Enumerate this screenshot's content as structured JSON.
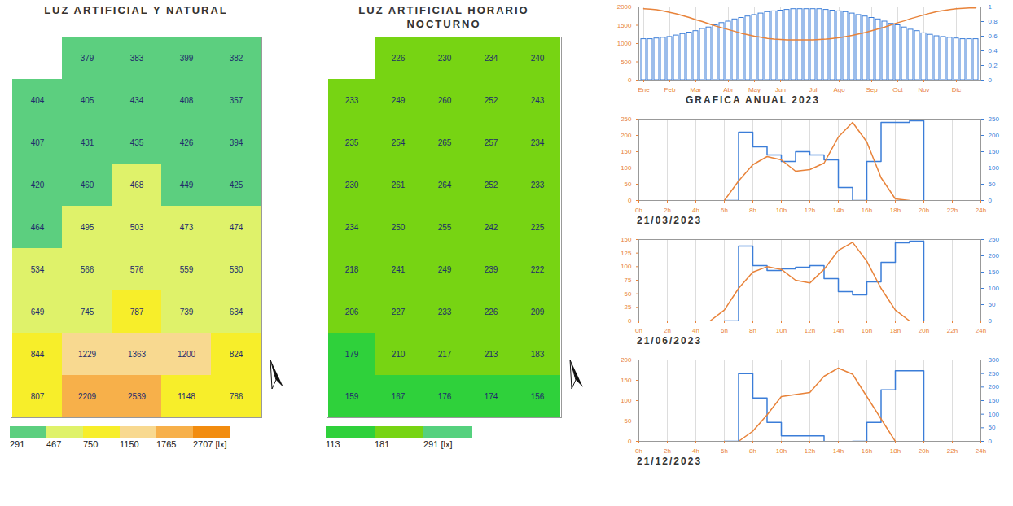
{
  "chart_data": [
    {
      "type": "heatmap",
      "title": "LUZ ARTIFICIAL Y NATURAL",
      "cells": [
        [
          null,
          379,
          383,
          399,
          382
        ],
        [
          404,
          405,
          434,
          408,
          357
        ],
        [
          407,
          431,
          435,
          426,
          394
        ],
        [
          420,
          460,
          468,
          449,
          425
        ],
        [
          464,
          495,
          503,
          473,
          474
        ],
        [
          534,
          566,
          576,
          559,
          530
        ],
        [
          649,
          745,
          787,
          739,
          634
        ],
        [
          844,
          1229,
          1363,
          1200,
          824
        ],
        [
          807,
          2209,
          2539,
          1148,
          786
        ]
      ],
      "color_ticks": [
        291,
        467,
        750,
        1150,
        1765,
        {
          "value": 2707,
          "label": "2707 [lx]"
        }
      ],
      "colors": [
        "#5ccf7f",
        "#dff26a",
        "#f7ee2a",
        "#f8d990",
        "#f7b04a",
        "#f28c0f"
      ],
      "data_labels": true,
      "tick_labels": false
    },
    {
      "type": "heatmap",
      "title": "LUZ ARTIFICIAL HORARIO NOCTURNO",
      "cells": [
        [
          null,
          226,
          230,
          234,
          240
        ],
        [
          233,
          249,
          260,
          252,
          243
        ],
        [
          235,
          254,
          265,
          257,
          234
        ],
        [
          230,
          261,
          264,
          252,
          233
        ],
        [
          234,
          250,
          255,
          242,
          225
        ],
        [
          218,
          241,
          249,
          239,
          222
        ],
        [
          206,
          227,
          233,
          226,
          209
        ],
        [
          179,
          210,
          217,
          213,
          183
        ],
        [
          159,
          167,
          176,
          174,
          156
        ]
      ],
      "color_ticks": [
        113,
        181,
        {
          "value": 291,
          "label": "291 [lx]"
        }
      ],
      "colors": [
        "#2fd13b",
        "#77d413",
        "#55d17e"
      ],
      "data_labels": true,
      "tick_labels": false
    },
    {
      "type": "bar",
      "title": "GRAFICA ANUAL 2023",
      "categories": [
        "Ene",
        null,
        null,
        null,
        "Feb",
        null,
        null,
        null,
        "Mar",
        null,
        null,
        null,
        null,
        "Abr",
        null,
        null,
        null,
        "May",
        null,
        null,
        null,
        "Jun",
        null,
        null,
        null,
        null,
        "Jul",
        null,
        null,
        null,
        "Ago",
        null,
        null,
        null,
        null,
        "Sep",
        null,
        null,
        null,
        "Oct",
        null,
        null,
        null,
        "Nov",
        null,
        null,
        null,
        null,
        "Dic",
        null,
        null,
        null
      ],
      "ylim": [
        0,
        2000
      ],
      "yticks": [
        0,
        500,
        1000,
        1500,
        2000
      ],
      "y2lim": [
        0,
        1
      ],
      "y2ticks": [
        0,
        0.2,
        0.4,
        0.6,
        0.8,
        1
      ],
      "grid": true,
      "series": [
        {
          "type": "bar",
          "axis": "y2",
          "color": "#3b7dd8",
          "values": [
            0.56,
            0.56,
            0.57,
            0.58,
            0.59,
            0.61,
            0.63,
            0.65,
            0.67,
            0.7,
            0.72,
            0.75,
            0.78,
            0.8,
            0.83,
            0.85,
            0.87,
            0.89,
            0.91,
            0.93,
            0.94,
            0.95,
            0.96,
            0.97,
            0.97,
            0.97,
            0.97,
            0.97,
            0.96,
            0.95,
            0.94,
            0.93,
            0.91,
            0.89,
            0.87,
            0.85,
            0.83,
            0.8,
            0.77,
            0.75,
            0.72,
            0.69,
            0.67,
            0.64,
            0.62,
            0.6,
            0.59,
            0.58,
            0.57,
            0.56,
            0.56,
            0.56
          ]
        },
        {
          "type": "line",
          "color": "#e8833a",
          "values": [
            1950,
            1940,
            1920,
            1890,
            1850,
            1810,
            1760,
            1710,
            1650,
            1600,
            1540,
            1480,
            1430,
            1380,
            1330,
            1280,
            1240,
            1200,
            1170,
            1140,
            1120,
            1110,
            1100,
            1100,
            1100,
            1100,
            1100,
            1110,
            1120,
            1140,
            1160,
            1190,
            1220,
            1260,
            1300,
            1350,
            1400,
            1450,
            1510,
            1570,
            1620,
            1680,
            1730,
            1780,
            1830,
            1870,
            1900,
            1930,
            1950,
            1960,
            1970,
            1970
          ]
        }
      ]
    },
    {
      "type": "line",
      "title": "21/03/2023",
      "x": [
        0,
        1,
        2,
        3,
        4,
        5,
        6,
        7,
        8,
        9,
        10,
        11,
        12,
        13,
        14,
        15,
        16,
        17,
        18,
        19,
        20,
        21,
        22,
        23,
        24
      ],
      "xlim": [
        0,
        24
      ],
      "xticks": [
        {
          "value": 0,
          "label": "0h"
        },
        {
          "value": 2,
          "label": "2h"
        },
        {
          "value": 4,
          "label": "4h"
        },
        {
          "value": 6,
          "label": "6h"
        },
        {
          "value": 8,
          "label": "8h"
        },
        {
          "value": 10,
          "label": "10h"
        },
        {
          "value": 12,
          "label": "12h"
        },
        {
          "value": 14,
          "label": "14h"
        },
        {
          "value": 16,
          "label": "16h"
        },
        {
          "value": 18,
          "label": "18h"
        },
        {
          "value": 20,
          "label": "20h"
        },
        {
          "value": 22,
          "label": "22h"
        },
        {
          "value": 24,
          "label": "24h"
        }
      ],
      "ylim": [
        0,
        250
      ],
      "yticks": [
        0,
        50,
        100,
        150,
        200,
        250
      ],
      "y2lim": [
        0,
        250
      ],
      "y2ticks": [
        0,
        50,
        100,
        150,
        200,
        250
      ],
      "grid": true,
      "series": [
        {
          "type": "line",
          "color": "#e8833a",
          "values": [
            null,
            null,
            null,
            null,
            null,
            null,
            0,
            60,
            110,
            135,
            125,
            90,
            95,
            115,
            195,
            240,
            180,
            70,
            5,
            0,
            null,
            null,
            null,
            null,
            null
          ]
        },
        {
          "type": "line",
          "axis": "y2",
          "line_style": "step",
          "color": "#3b7dd8",
          "values": [
            null,
            null,
            null,
            null,
            null,
            null,
            0,
            210,
            165,
            140,
            120,
            150,
            140,
            125,
            40,
            0,
            120,
            240,
            240,
            245,
            0,
            null,
            null,
            null,
            null
          ]
        }
      ]
    },
    {
      "type": "line",
      "title": "21/06/2023",
      "x": [
        0,
        1,
        2,
        3,
        4,
        5,
        6,
        7,
        8,
        9,
        10,
        11,
        12,
        13,
        14,
        15,
        16,
        17,
        18,
        19,
        20,
        21,
        22,
        23,
        24
      ],
      "xlim": [
        0,
        24
      ],
      "xticks": [
        {
          "value": 0,
          "label": "0h"
        },
        {
          "value": 2,
          "label": "2h"
        },
        {
          "value": 4,
          "label": "4h"
        },
        {
          "value": 6,
          "label": "6h"
        },
        {
          "value": 8,
          "label": "8h"
        },
        {
          "value": 10,
          "label": "10h"
        },
        {
          "value": 12,
          "label": "12h"
        },
        {
          "value": 14,
          "label": "14h"
        },
        {
          "value": 16,
          "label": "16h"
        },
        {
          "value": 18,
          "label": "18h"
        },
        {
          "value": 20,
          "label": "20h"
        },
        {
          "value": 22,
          "label": "22h"
        },
        {
          "value": 24,
          "label": "24h"
        }
      ],
      "ylim": [
        0,
        150
      ],
      "yticks": [
        0,
        25,
        50,
        75,
        100,
        125,
        150
      ],
      "y2lim": [
        0,
        250
      ],
      "y2ticks": [
        0,
        50,
        100,
        150,
        200,
        250
      ],
      "grid": true,
      "series": [
        {
          "type": "line",
          "color": "#e8833a",
          "values": [
            null,
            null,
            null,
            null,
            null,
            0,
            20,
            60,
            90,
            100,
            95,
            75,
            70,
            95,
            130,
            145,
            110,
            60,
            20,
            0,
            null,
            null,
            null,
            null,
            null
          ]
        },
        {
          "type": "line",
          "axis": "y2",
          "line_style": "step",
          "color": "#3b7dd8",
          "values": [
            null,
            null,
            null,
            null,
            null,
            null,
            0,
            230,
            170,
            155,
            160,
            165,
            170,
            130,
            90,
            80,
            120,
            180,
            240,
            245,
            0,
            null,
            null,
            null,
            null
          ]
        }
      ]
    },
    {
      "type": "line",
      "title": "21/12/2023",
      "x": [
        0,
        1,
        2,
        3,
        4,
        5,
        6,
        7,
        8,
        9,
        10,
        11,
        12,
        13,
        14,
        15,
        16,
        17,
        18,
        19,
        20,
        21,
        22,
        23,
        24
      ],
      "xlim": [
        0,
        24
      ],
      "xticks": [
        {
          "value": 0,
          "label": "0h"
        },
        {
          "value": 2,
          "label": "2h"
        },
        {
          "value": 4,
          "label": "4h"
        },
        {
          "value": 6,
          "label": "6h"
        },
        {
          "value": 8,
          "label": "8h"
        },
        {
          "value": 10,
          "label": "10h"
        },
        {
          "value": 12,
          "label": "12h"
        },
        {
          "value": 14,
          "label": "14h"
        },
        {
          "value": 16,
          "label": "16h"
        },
        {
          "value": 18,
          "label": "18h"
        },
        {
          "value": 20,
          "label": "20h"
        },
        {
          "value": 22,
          "label": "22h"
        },
        {
          "value": 24,
          "label": "24h"
        }
      ],
      "ylim": [
        0,
        200
      ],
      "yticks": [
        0,
        50,
        100,
        150,
        200
      ],
      "y2lim": [
        0,
        300
      ],
      "y2ticks": [
        0,
        50,
        100,
        150,
        200,
        250,
        300
      ],
      "grid": true,
      "series": [
        {
          "type": "line",
          "color": "#e8833a",
          "values": [
            null,
            null,
            null,
            null,
            null,
            null,
            null,
            0,
            25,
            65,
            110,
            115,
            120,
            160,
            180,
            165,
            110,
            55,
            0,
            null,
            null,
            null,
            null,
            null,
            null
          ]
        },
        {
          "type": "line",
          "axis": "y2",
          "line_style": "step",
          "color": "#3b7dd8",
          "values": [
            null,
            null,
            null,
            null,
            null,
            null,
            0,
            250,
            160,
            70,
            20,
            20,
            20,
            0,
            null,
            0,
            70,
            190,
            260,
            260,
            0,
            null,
            null,
            null,
            null
          ]
        }
      ]
    }
  ]
}
